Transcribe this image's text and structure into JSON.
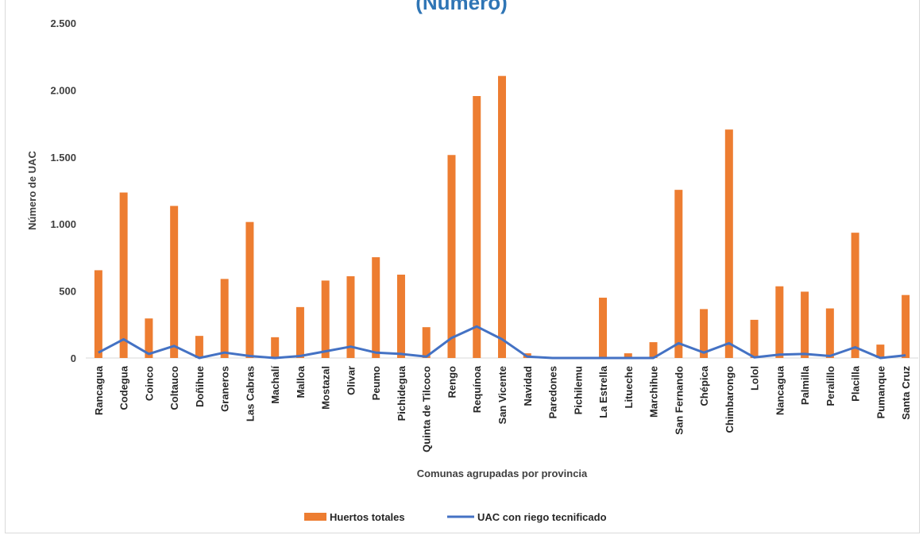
{
  "chart_data": {
    "type": "bar",
    "title": "(Número)",
    "xlabel": "Comunas agrupadas por provincia",
    "ylabel": "Número de UAC",
    "ylim": [
      0,
      2500
    ],
    "yticks": [
      0,
      500,
      1000,
      1500,
      2000,
      2500
    ],
    "ytick_labels": [
      "0",
      "500",
      "1.000",
      "1.500",
      "2.000",
      "2.500"
    ],
    "grid": false,
    "legend": "bottom",
    "categories": [
      "Rancagua",
      "Codegua",
      "Coinco",
      "Coltauco",
      "Doñihue",
      "Graneros",
      "Las Cabras",
      "Machalí",
      "Malloa",
      "Mostazal",
      "Olivar",
      "Peumo",
      "Pichidegua",
      "Quinta de Tilcoco",
      "Rengo",
      "Requínoa",
      "San Vicente",
      "Navidad",
      "Paredones",
      "Pichilemu",
      "La Estrella",
      "Litueche",
      "Marchihue",
      "San Fernando",
      "Chépica",
      "Chimbarongo",
      "Lolol",
      "Nancagua",
      "Palmilla",
      "Peralillo",
      "Placilla",
      "Pumanque",
      "Santa Cruz"
    ],
    "series": [
      {
        "name": "Huertos totales",
        "type": "bar",
        "color": "#ed7d31",
        "values": [
          655,
          1235,
          295,
          1135,
          165,
          590,
          1015,
          155,
          380,
          578,
          610,
          752,
          622,
          230,
          1515,
          1955,
          2105,
          35,
          0,
          0,
          450,
          35,
          118,
          1255,
          365,
          1705,
          285,
          535,
          495,
          370,
          935,
          100,
          470
        ]
      },
      {
        "name": "UAC con riego tecnificado",
        "type": "line",
        "color": "#4472c4",
        "values": [
          40,
          140,
          30,
          90,
          0,
          40,
          15,
          0,
          15,
          50,
          85,
          40,
          30,
          10,
          150,
          235,
          140,
          10,
          0,
          0,
          0,
          0,
          0,
          110,
          40,
          110,
          5,
          25,
          30,
          15,
          80,
          0,
          20
        ]
      }
    ]
  }
}
